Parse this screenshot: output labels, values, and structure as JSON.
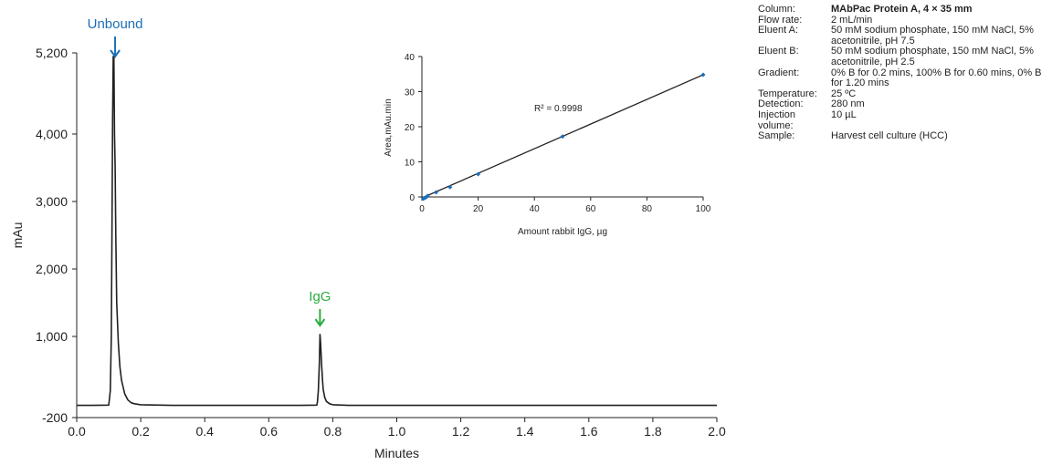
{
  "chart_data": [
    {
      "type": "line",
      "title": "",
      "xlabel": "Minutes",
      "ylabel": "mAu",
      "xlim": [
        0.0,
        2.0
      ],
      "ylim": [
        -200,
        5200
      ],
      "x_ticks": [
        0.0,
        0.2,
        0.4,
        0.6,
        0.8,
        1.0,
        1.2,
        1.4,
        1.6,
        1.8,
        2.0
      ],
      "x_tick_labels": [
        "0.0",
        "0.2",
        "0.4",
        "0.6",
        "0.8",
        "1.0",
        "1.2",
        "1.4",
        "1.6",
        "1.8",
        "2.0"
      ],
      "y_ticks": [
        -200,
        1000,
        2000,
        3000,
        4000,
        5200
      ],
      "y_tick_labels": [
        "-200",
        "1,000",
        "2,000",
        "3,000",
        "4,000",
        "5,200"
      ],
      "grid": false,
      "series": [
        {
          "color": "#231f20",
          "x": [
            0.0,
            0.05,
            0.1,
            0.105,
            0.108,
            0.11,
            0.112,
            0.114,
            0.116,
            0.118,
            0.12,
            0.122,
            0.125,
            0.13,
            0.135,
            0.14,
            0.15,
            0.16,
            0.17,
            0.18,
            0.2,
            0.3,
            0.5,
            0.7,
            0.75,
            0.752,
            0.755,
            0.758,
            0.76,
            0.762,
            0.765,
            0.768,
            0.77,
            0.775,
            0.78,
            0.79,
            0.8,
            0.85,
            1.0,
            1.5,
            2.0
          ],
          "y": [
            -20,
            -20,
            -15,
            200,
            1000,
            2500,
            4200,
            5150,
            5150,
            4000,
            3500,
            2500,
            1500,
            900,
            550,
            350,
            150,
            60,
            20,
            5,
            -10,
            -20,
            -20,
            -20,
            -15,
            30,
            200,
            600,
            1030,
            900,
            600,
            350,
            220,
            100,
            40,
            5,
            -10,
            -20,
            -20,
            -20,
            -20
          ]
        }
      ],
      "annotations": [
        {
          "text": "Unbound",
          "x": 0.12,
          "color": "#1b6fb6"
        },
        {
          "text": "IgG",
          "x": 0.76,
          "color": "#2bac3f"
        }
      ]
    },
    {
      "type": "scatter",
      "title": "",
      "xlabel": "Amount rabbit IgG, µg",
      "ylabel": "Area,mAu.min",
      "xlim": [
        0,
        100
      ],
      "ylim": [
        0,
        40
      ],
      "x_ticks": [
        0,
        20,
        40,
        60,
        80,
        100
      ],
      "y_ticks": [
        0,
        10,
        20,
        30,
        40
      ],
      "grid": false,
      "points": {
        "color": "#1b6fb6",
        "x": [
          0.5,
          1,
          1.5,
          2,
          5,
          10,
          20,
          50,
          100
        ],
        "y": [
          -0.5,
          -0.3,
          -0.1,
          0.3,
          1.3,
          2.8,
          6.5,
          17.2,
          34.8
        ]
      },
      "fit_line": {
        "x": [
          0,
          100
        ],
        "y": [
          -0.3,
          34.8
        ]
      },
      "r_squared_label": "R² = 0.9998"
    }
  ],
  "conditions": [
    {
      "label": "Column:",
      "value": "MAbPac Protein A, 4 × 35 mm",
      "bold": true
    },
    {
      "label": "Flow rate:",
      "value": "2 mL/min",
      "bold": false
    },
    {
      "label": "Eluent A:",
      "value": "50 mM sodium phosphate, 150 mM NaCl, 5% acetonitrile, pH 7.5",
      "bold": false
    },
    {
      "label": "Eluent B:",
      "value": "50 mM sodium phosphate, 150 mM NaCl, 5% acetonitrile, pH 2.5",
      "bold": false
    },
    {
      "label": "Gradient:",
      "value": "0% B for 0.2 mins, 100% B for 0.60 mins, 0% B for 1.20 mins",
      "bold": false
    },
    {
      "label": "Temperature:",
      "value": "25 ºC",
      "bold": false
    },
    {
      "label": "Detection:",
      "value": "280 nm",
      "bold": false
    },
    {
      "label": "Injection volume:",
      "value": "10 µL",
      "bold": false
    },
    {
      "label": "Sample:",
      "value": "Harvest cell culture (HCC)",
      "bold": false
    }
  ]
}
